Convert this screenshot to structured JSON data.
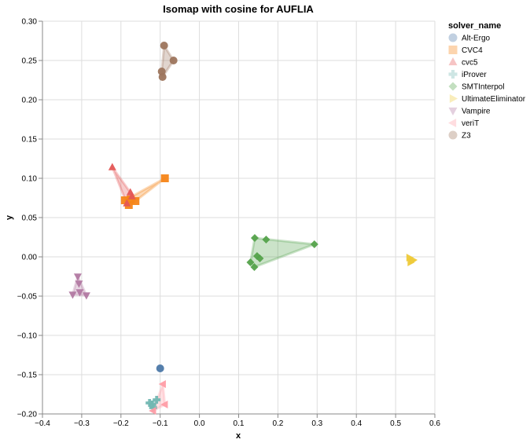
{
  "chart_data": {
    "type": "scatter",
    "title": "Isomap with cosine for AUFLIA",
    "xlabel": "x",
    "ylabel": "y",
    "xlim": [
      -0.4,
      0.6
    ],
    "ylim": [
      -0.2,
      0.3
    ],
    "x_ticks": [
      -0.4,
      -0.3,
      -0.2,
      -0.1,
      0.0,
      0.1,
      0.2,
      0.3,
      0.4,
      0.5,
      0.6
    ],
    "x_tick_labels": [
      "−0.4",
      "−0.3",
      "−0.2",
      "−0.1",
      "0.0",
      "0.1",
      "0.2",
      "0.3",
      "0.4",
      "0.5",
      "0.6"
    ],
    "y_ticks": [
      -0.2,
      -0.15,
      -0.1,
      -0.05,
      0.0,
      0.05,
      0.1,
      0.15,
      0.2,
      0.25,
      0.3
    ],
    "y_tick_labels": [
      "−0.20",
      "−0.15",
      "−0.10",
      "−0.05",
      "0.00",
      "0.05",
      "0.10",
      "0.15",
      "0.20",
      "0.25",
      "0.30"
    ],
    "grid": true,
    "legend_title": "solver_name",
    "legend_position": "right",
    "series": [
      {
        "name": "Alt-Ergo",
        "color": "#4c78a8",
        "shape": "circle",
        "points": [
          [
            -0.1,
            -0.142
          ]
        ]
      },
      {
        "name": "CVC4",
        "color": "#f58518",
        "shape": "square",
        "points": [
          [
            -0.088,
            0.1
          ],
          [
            -0.163,
            0.071
          ],
          [
            -0.18,
            0.066
          ],
          [
            -0.19,
            0.072
          ],
          [
            -0.175,
            0.073
          ]
        ]
      },
      {
        "name": "cvc5",
        "color": "#e45756",
        "shape": "triangle-up",
        "points": [
          [
            -0.222,
            0.114
          ],
          [
            -0.176,
            0.082
          ],
          [
            -0.172,
            0.077
          ],
          [
            -0.185,
            0.068
          ]
        ]
      },
      {
        "name": "iProver",
        "color": "#72b7b2",
        "shape": "cross",
        "points": [
          [
            -0.127,
            -0.186
          ],
          [
            -0.109,
            -0.182
          ],
          [
            -0.118,
            -0.192
          ],
          [
            -0.12,
            -0.188
          ]
        ]
      },
      {
        "name": "SMTInterpol",
        "color": "#54a24b",
        "shape": "diamond",
        "points": [
          [
            0.293,
            0.016
          ],
          [
            0.17,
            0.022
          ],
          [
            0.141,
            0.024
          ],
          [
            0.147,
            0.001
          ],
          [
            0.154,
            -0.002
          ],
          [
            0.13,
            -0.007
          ],
          [
            0.14,
            -0.013
          ]
        ]
      },
      {
        "name": "UltimateEliminator",
        "color": "#eeca3b",
        "shape": "triangle-right",
        "points": [
          [
            0.535,
            -0.001
          ],
          [
            0.542,
            -0.005
          ],
          [
            0.538,
            -0.007
          ],
          [
            0.545,
            -0.004
          ]
        ]
      },
      {
        "name": "Vampire",
        "color": "#b279a2",
        "shape": "triangle-down",
        "points": [
          [
            -0.31,
            -0.025
          ],
          [
            -0.307,
            -0.034
          ],
          [
            -0.323,
            -0.048
          ],
          [
            -0.288,
            -0.049
          ],
          [
            -0.305,
            -0.045
          ]
        ]
      },
      {
        "name": "veriT",
        "color": "#ff9da6",
        "shape": "triangle-left",
        "points": [
          [
            -0.093,
            -0.162
          ],
          [
            -0.088,
            -0.188
          ],
          [
            -0.118,
            -0.196
          ]
        ]
      },
      {
        "name": "Z3",
        "color": "#9d755d",
        "shape": "circle",
        "points": [
          [
            -0.09,
            0.269
          ],
          [
            -0.066,
            0.25
          ],
          [
            -0.096,
            0.236
          ],
          [
            -0.094,
            0.229
          ]
        ]
      }
    ]
  }
}
